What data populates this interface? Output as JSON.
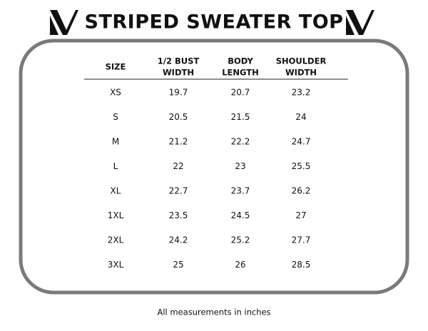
{
  "header": {
    "title": "STRIPED SWEATER TOP"
  },
  "table": {
    "columns": [
      [
        "SIZE"
      ],
      [
        "1/2 BUST",
        "WIDTH"
      ],
      [
        "BODY",
        "LENGTH"
      ],
      [
        "SHOULDER",
        "WIDTH"
      ]
    ],
    "rows": [
      [
        "XS",
        "19.7",
        "20.7",
        "23.2"
      ],
      [
        "S",
        "20.5",
        "21.5",
        "24"
      ],
      [
        "M",
        "21.2",
        "22.2",
        "24.7"
      ],
      [
        "L",
        "22",
        "23",
        "25.5"
      ],
      [
        "XL",
        "22.7",
        "23.7",
        "26.2"
      ],
      [
        "1XL",
        "23.5",
        "24.5",
        "27"
      ],
      [
        "2XL",
        "24.2",
        "25.2",
        "27.7"
      ],
      [
        "3XL",
        "25",
        "26",
        "28.5"
      ]
    ]
  },
  "footer": {
    "note": "All measurements in inches"
  }
}
